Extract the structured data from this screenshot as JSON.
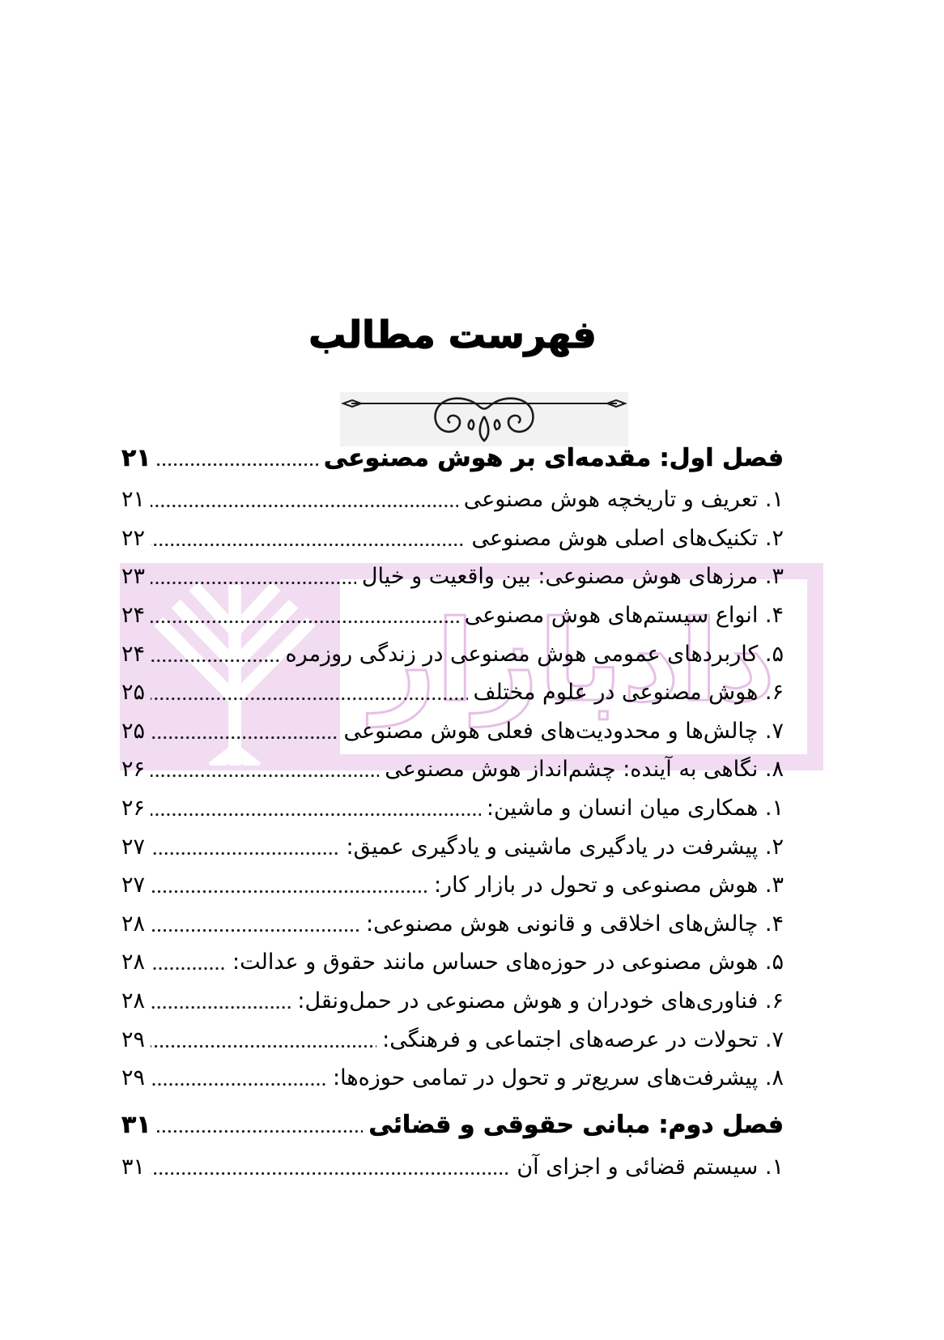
{
  "page": {
    "title": "فهرست مطالب"
  },
  "watermark": {
    "brand_text": "دادبازار",
    "band_color": "#f1dcf2",
    "outline_color": "#e6bfe7",
    "logo_color": "#ffffff"
  },
  "toc": {
    "entries": [
      {
        "type": "chapter",
        "label": "فصل اول: مقدمه‌ای بر هوش مصنوعی",
        "page": "۲۱"
      },
      {
        "type": "item",
        "label": "۱. تعریف و تاریخچه هوش مصنوعی",
        "page": "۲۱"
      },
      {
        "type": "item",
        "label": "۲. تکنیک‌های اصلی هوش مصنوعی",
        "page": "۲۲"
      },
      {
        "type": "item",
        "label": "۳. مرزهای هوش مصنوعی: بین واقعیت و خیال",
        "page": "۲۳"
      },
      {
        "type": "item",
        "label": "۴. انواع سیستم‌های هوش مصنوعی",
        "page": "۲۴"
      },
      {
        "type": "item",
        "label": "۵. کاربردهای عمومی هوش مصنوعی در زندگی روزمره",
        "page": "۲۴"
      },
      {
        "type": "item",
        "label": "۶. هوش مصنوعی در علوم مختلف",
        "page": "۲۵"
      },
      {
        "type": "item",
        "label": "۷. چالش‌ها و محدودیت‌های فعلی هوش مصنوعی",
        "page": "۲۵"
      },
      {
        "type": "item",
        "label": "۸. نگاهی به آینده: چشم‌انداز هوش مصنوعی",
        "page": "۲۶"
      },
      {
        "type": "item",
        "label": "۱. همکاری میان انسان و ماشین:",
        "page": "۲۶"
      },
      {
        "type": "item",
        "label": "۲. پیشرفت در یادگیری ماشینی و یادگیری عمیق:",
        "page": "۲۷"
      },
      {
        "type": "item",
        "label": "۳. هوش مصنوعی و تحول در بازار کار:",
        "page": "۲۷"
      },
      {
        "type": "item",
        "label": "۴. چالش‌های اخلاقی و قانونی هوش مصنوعی:",
        "page": "۲۸"
      },
      {
        "type": "item",
        "label": "۵. هوش مصنوعی در حوزه‌های حساس مانند حقوق و عدالت:",
        "page": "۲۸"
      },
      {
        "type": "item",
        "label": "۶. فناوری‌های خودران و هوش مصنوعی در حمل‌ونقل:",
        "page": "۲۸"
      },
      {
        "type": "item",
        "label": "۷. تحولات در عرصه‌های اجتماعی و فرهنگی:",
        "page": "۲۹"
      },
      {
        "type": "item",
        "label": "۸. پیشرفت‌های سریع‌تر و تحول در تمامی حوزه‌ها:",
        "page": "۲۹"
      },
      {
        "type": "chapter",
        "label": "فصل دوم: مبانی حقوقی و قضائی",
        "page": "۳۱"
      },
      {
        "type": "item",
        "label": "۱. سیستم قضائی و اجزای آن",
        "page": "۳۱"
      }
    ]
  }
}
